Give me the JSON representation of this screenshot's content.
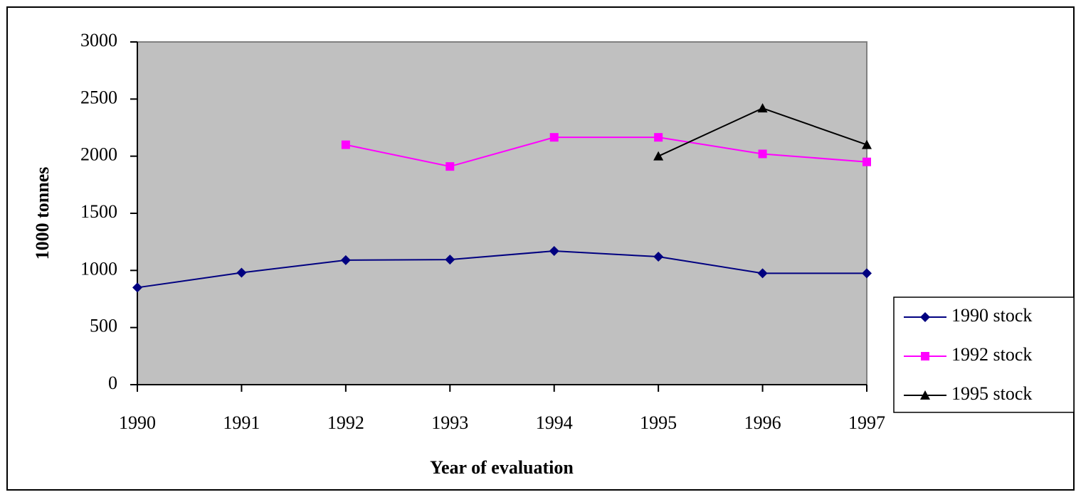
{
  "chart_data": {
    "type": "line",
    "x": [
      1990,
      1991,
      1992,
      1993,
      1994,
      1995,
      1996,
      1997
    ],
    "x_label": "Year of evaluation",
    "y_label": "1000 tonnes",
    "xlim": [
      1990,
      1997
    ],
    "xticks": [
      1990,
      1991,
      1992,
      1993,
      1994,
      1995,
      1996,
      1997
    ],
    "ylim": [
      0,
      3000
    ],
    "yticks": [
      0,
      500,
      1000,
      1500,
      2000,
      2500,
      3000
    ],
    "grid": false,
    "legend": "right",
    "series": [
      {
        "name": "1990 stock",
        "color": "#000080",
        "marker": "diamond",
        "values": [
          850,
          980,
          1090,
          1095,
          1170,
          1120,
          975,
          975
        ]
      },
      {
        "name": "1992 stock",
        "color": "#ff00ff",
        "marker": "square",
        "values": [
          null,
          null,
          2100,
          1910,
          2165,
          2165,
          2020,
          1950
        ]
      },
      {
        "name": "1995 stock",
        "color": "#000000",
        "marker": "triangle",
        "values": [
          null,
          null,
          null,
          null,
          null,
          2000,
          2420,
          2100
        ]
      }
    ]
  }
}
